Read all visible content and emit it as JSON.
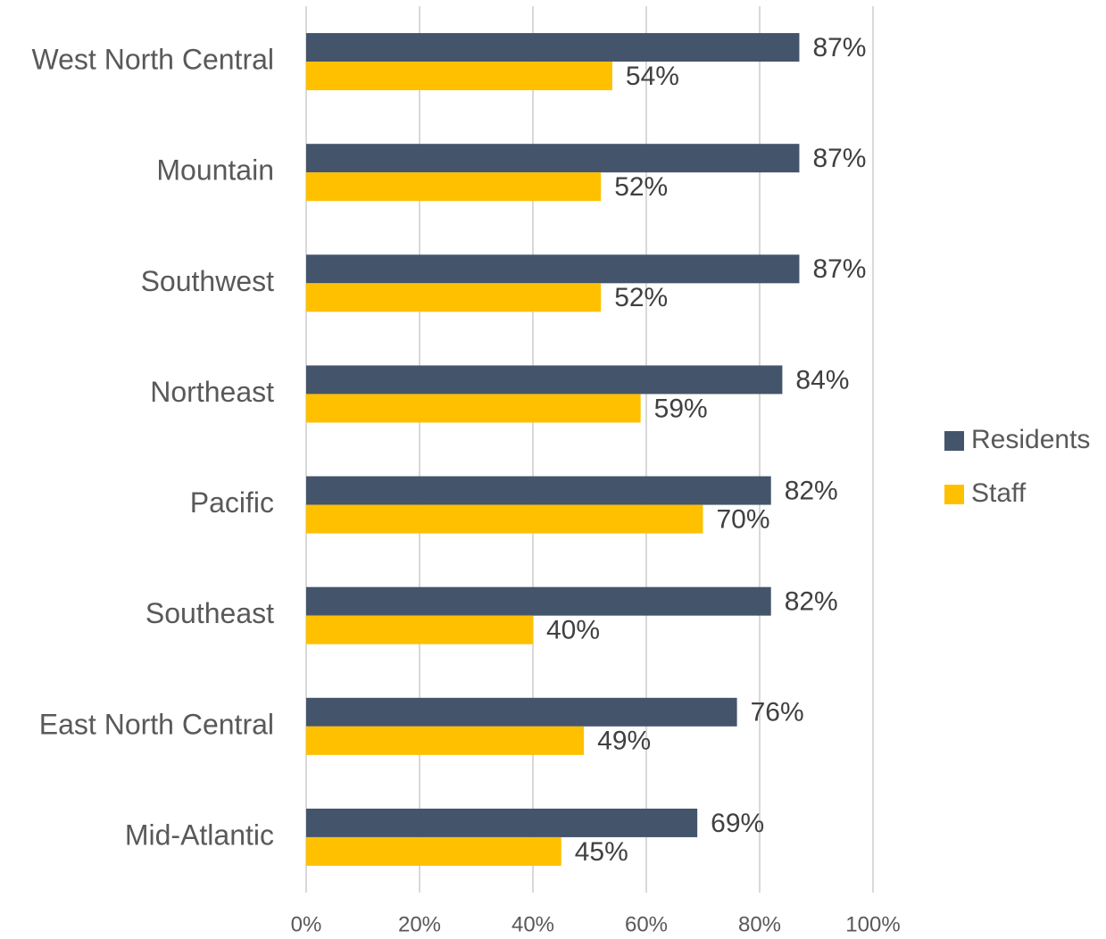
{
  "chart_data": {
    "type": "bar",
    "orientation": "horizontal",
    "categories": [
      "West North Central",
      "Mountain",
      "Southwest",
      "Northeast",
      "Pacific",
      "Southeast",
      "East North Central",
      "Mid-Atlantic"
    ],
    "series": [
      {
        "name": "Residents",
        "color": "#44546a",
        "values": [
          87,
          87,
          87,
          84,
          82,
          82,
          76,
          69
        ],
        "value_labels": [
          "87%",
          "87%",
          "87%",
          "84%",
          "82%",
          "82%",
          "76%",
          "69%"
        ]
      },
      {
        "name": "Staff",
        "color": "#ffc000",
        "values": [
          54,
          52,
          52,
          59,
          70,
          40,
          49,
          45
        ],
        "value_labels": [
          "54%",
          "52%",
          "52%",
          "59%",
          "70%",
          "40%",
          "49%",
          "45%"
        ]
      }
    ],
    "xlim": [
      0,
      100
    ],
    "xticks": [
      {
        "value": 0,
        "label": "0%"
      },
      {
        "value": 20,
        "label": "20%"
      },
      {
        "value": 40,
        "label": "40%"
      },
      {
        "value": 60,
        "label": "60%"
      },
      {
        "value": 80,
        "label": "80%"
      },
      {
        "value": 100,
        "label": "100%"
      }
    ],
    "grid": true,
    "legend": "right"
  }
}
